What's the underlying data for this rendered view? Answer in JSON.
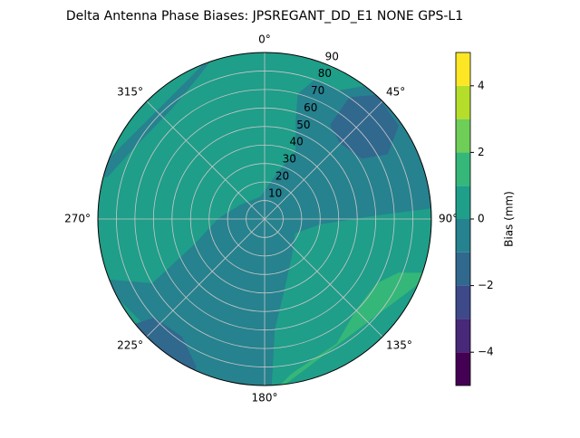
{
  "chart_data": {
    "type": "polar_contour",
    "title": "Delta Antenna Phase Biases: JPSREGANT_DD_E1 NONE GPS-L1",
    "rlim": [
      0,
      90
    ],
    "rticks": [
      10,
      20,
      30,
      40,
      50,
      60,
      70,
      80,
      90
    ],
    "thetaticks": [
      {
        "value": 0,
        "label": "0°"
      },
      {
        "value": 45,
        "label": "45°"
      },
      {
        "value": 90,
        "label": "90°"
      },
      {
        "value": 135,
        "label": "135°"
      },
      {
        "value": 180,
        "label": "180°"
      },
      {
        "value": 225,
        "label": "225°"
      },
      {
        "value": 270,
        "label": "270°"
      },
      {
        "value": 315,
        "label": "315°"
      }
    ],
    "grid": true,
    "background_band": [
      0,
      1
    ],
    "regions": [
      {
        "band": [
          -1,
          0
        ],
        "polygon": [
          [
            178,
            95
          ],
          [
            175,
            60
          ],
          [
            165,
            40
          ],
          [
            145,
            25
          ],
          [
            115,
            18
          ],
          [
            95,
            30
          ],
          [
            88,
            60
          ],
          [
            86,
            95
          ],
          [
            60,
            95
          ],
          [
            40,
            95
          ],
          [
            30,
            80
          ],
          [
            20,
            80
          ],
          [
            15,
            70
          ],
          [
            18,
            55
          ],
          [
            25,
            40
          ],
          [
            15,
            25
          ],
          [
            350,
            12
          ],
          [
            300,
            15
          ],
          [
            270,
            25
          ],
          [
            250,
            40
          ],
          [
            240,
            70
          ],
          [
            250,
            95
          ],
          [
            200,
            95
          ]
        ]
      },
      {
        "band": [
          -1,
          0
        ],
        "polygon": [
          [
            285,
            95
          ],
          [
            285,
            88
          ],
          [
            300,
            80
          ],
          [
            320,
            78
          ],
          [
            335,
            85
          ],
          [
            345,
            95
          ]
        ]
      },
      {
        "band": [
          -2,
          -1
        ],
        "polygon": [
          [
            35,
            62
          ],
          [
            45,
            58
          ],
          [
            58,
            62
          ],
          [
            62,
            75
          ],
          [
            55,
            88
          ],
          [
            42,
            90
          ],
          [
            35,
            80
          ]
        ]
      },
      {
        "band": [
          -2,
          -1
        ],
        "polygon": [
          [
            205,
            95
          ],
          [
            205,
            88
          ],
          [
            215,
            78
          ],
          [
            228,
            80
          ],
          [
            232,
            95
          ]
        ]
      },
      {
        "band": [
          1,
          2
        ],
        "polygon": [
          [
            178,
            95
          ],
          [
            170,
            85
          ],
          [
            150,
            78
          ],
          [
            135,
            70
          ],
          [
            120,
            70
          ],
          [
            112,
            78
          ],
          [
            108,
            95
          ]
        ]
      }
    ],
    "colorbar": {
      "label": "Bias (mm)",
      "levels": [
        -5,
        -4,
        -3,
        -2,
        -1,
        0,
        1,
        2,
        3,
        4,
        5
      ],
      "colors": [
        "#440154",
        "#482878",
        "#3e4989",
        "#31688e",
        "#26828e",
        "#1f9e89",
        "#35b779",
        "#6ece58",
        "#b5de2b",
        "#fde725"
      ],
      "ticks": [
        {
          "value": -4,
          "label": "−4"
        },
        {
          "value": -2,
          "label": "−2"
        },
        0,
        2,
        4
      ]
    }
  }
}
